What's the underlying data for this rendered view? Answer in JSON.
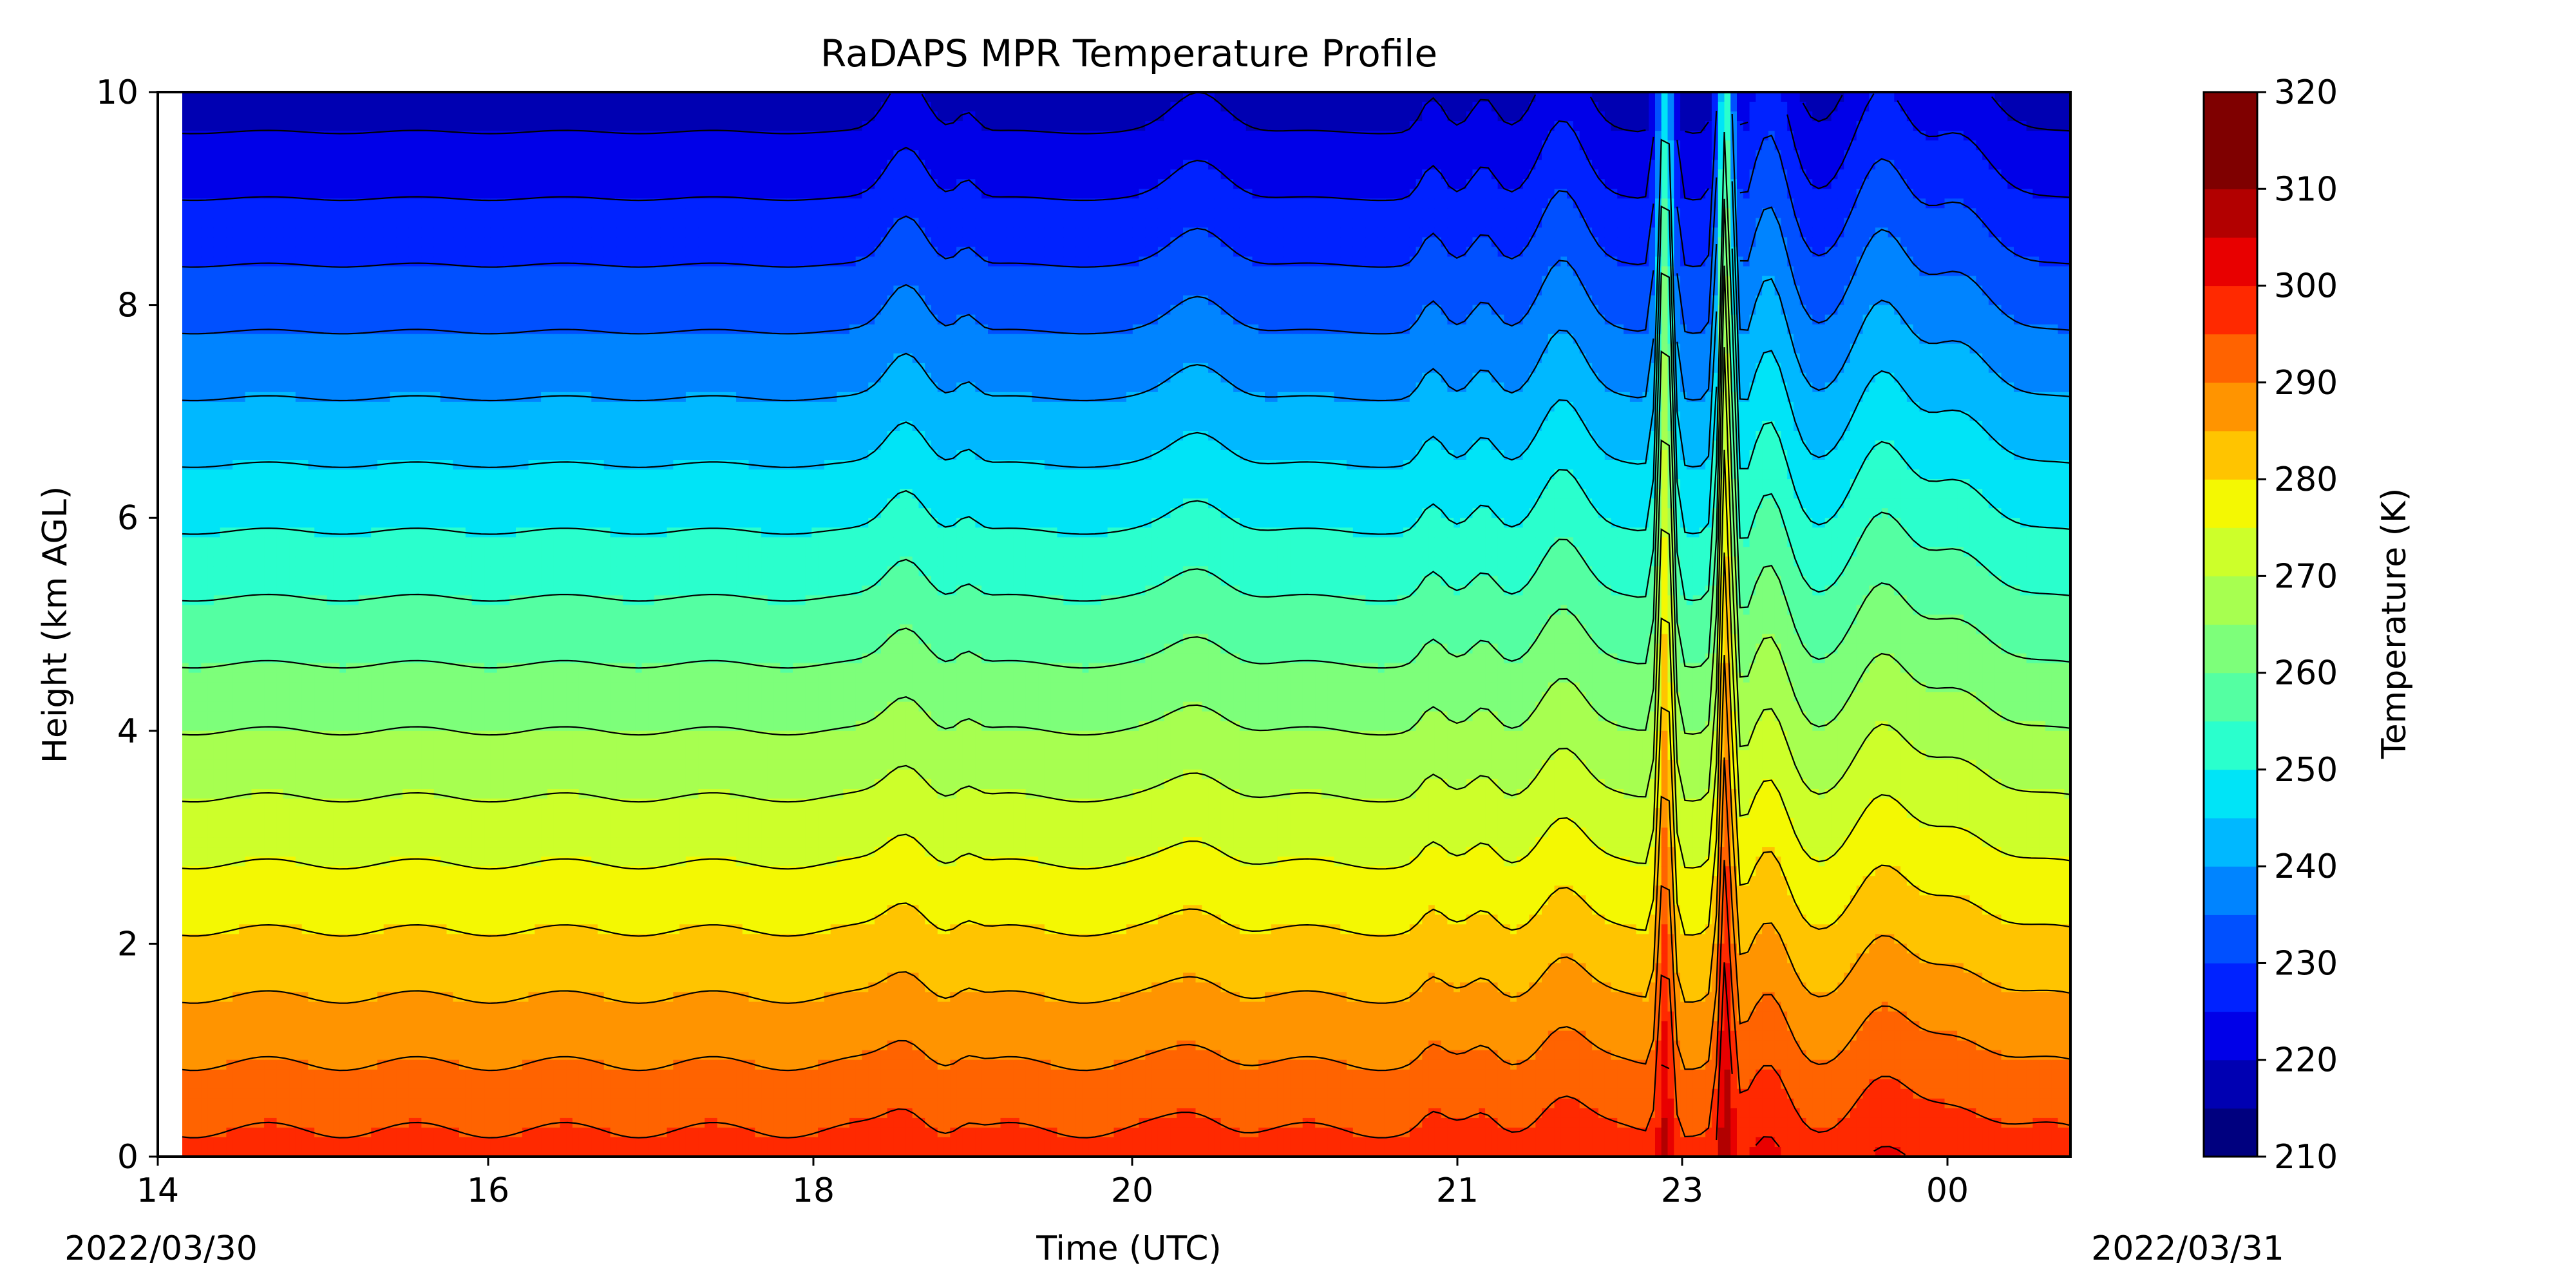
{
  "chart_data": {
    "type": "heatmap",
    "subtype": "filled-contour",
    "title": "RaDAPS MPR Temperature Profile",
    "xlabel": "Time (UTC)",
    "ylabel": "Height (km AGL)",
    "x_ticks": [
      "14",
      "16",
      "18",
      "20",
      "21",
      "23",
      "00"
    ],
    "x_date_labels": [
      "2022/03/30",
      "2022/03/31"
    ],
    "y_ticks": [
      "0",
      "2",
      "4",
      "6",
      "8",
      "10"
    ],
    "ylim": [
      0,
      10
    ],
    "colorbar": {
      "label": "Temperature (K)",
      "range": [
        210,
        320
      ],
      "step": 5,
      "ticks": [
        "210",
        "220",
        "230",
        "240",
        "250",
        "260",
        "270",
        "280",
        "290",
        "300",
        "310",
        "320"
      ],
      "colormap": "jet",
      "colors": [
        "#00007f",
        "#0000b2",
        "#0000e8",
        "#0022ff",
        "#0050ff",
        "#0084ff",
        "#00b8ff",
        "#00e4f7",
        "#2affcd",
        "#54ffa2",
        "#7dff7a",
        "#a7ff50",
        "#cdff2a",
        "#f4f802",
        "#ffc400",
        "#ff9400",
        "#ff6300",
        "#ff2900",
        "#e80000",
        "#b20000",
        "#7f0000",
        "#7f0000"
      ]
    },
    "profile": {
      "surface_temp": 297,
      "lapse_rate_k_per_km": 8.0,
      "features": [
        {
          "time_h": 18.55,
          "amplitude": 4,
          "width_h": 0.16
        },
        {
          "time_h": 18.9,
          "amplitude": 1.5,
          "width_h": 0.08
        },
        {
          "time_h": 20.25,
          "amplitude": 3,
          "width_h": 0.22
        },
        {
          "time_h": 21.6,
          "amplitude": 2.5,
          "width_h": 0.09
        },
        {
          "time_h": 21.9,
          "amplitude": 2.5,
          "width_h": 0.1
        },
        {
          "time_h": 22.35,
          "amplitude": 6,
          "width_h": 0.18
        },
        {
          "time_h": 22.95,
          "amplitude": 30,
          "width_h": 0.05
        },
        {
          "time_h": 23.3,
          "amplitude": 35,
          "width_h": 0.05
        },
        {
          "time_h": 23.55,
          "amplitude": 10,
          "width_h": 0.16
        },
        {
          "time_h": 24.2,
          "amplitude": 8,
          "width_h": 0.22
        },
        {
          "time_h": 24.65,
          "amplitude": 5,
          "width_h": 0.25
        }
      ]
    }
  }
}
